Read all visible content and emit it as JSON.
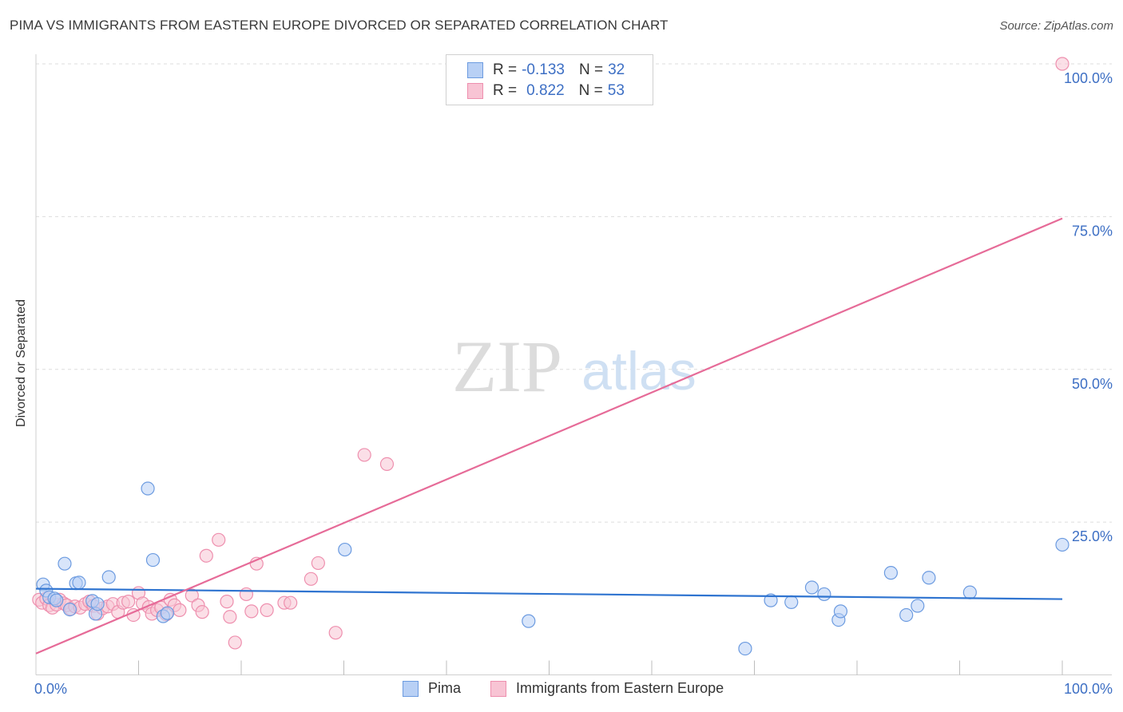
{
  "title": "PIMA VS IMMIGRANTS FROM EASTERN EUROPE DIVORCED OR SEPARATED CORRELATION CHART",
  "source": "Source: ZipAtlas.com",
  "watermark": {
    "zip": "ZIP",
    "atlas": "atlas"
  },
  "legend": {
    "rows": [
      {
        "r_label": "R =",
        "r_value": "-0.133",
        "n_label": "N =",
        "n_value": "32"
      },
      {
        "r_label": "R =",
        "r_value": "0.822",
        "n_label": "N =",
        "n_value": "53"
      }
    ]
  },
  "colors": {
    "pima_fill": "#b8d0f5",
    "pima_stroke": "#6c9be0",
    "pima_line": "#2f74d0",
    "imm_fill": "#f8c4d4",
    "imm_stroke": "#ee8fae",
    "imm_line": "#e66b98",
    "tick_text": "#3d6fc4",
    "grid": "#dddddd"
  },
  "chart_data": {
    "type": "scatter",
    "title": "PIMA VS IMMIGRANTS FROM EASTERN EUROPE DIVORCED OR SEPARATED CORRELATION CHART",
    "xlabel": "",
    "ylabel": "Divorced or Separated",
    "xlim": [
      0,
      100
    ],
    "ylim": [
      0,
      100
    ],
    "x_tick_labels": [
      "0.0%",
      "100.0%"
    ],
    "y_ticks": [
      {
        "value": 25,
        "label": "25.0%"
      },
      {
        "value": 50,
        "label": "50.0%"
      },
      {
        "value": 75,
        "label": "75.0%"
      },
      {
        "value": 100,
        "label": "100.0%"
      }
    ],
    "grid": true,
    "legend_position": "top-center",
    "series": [
      {
        "name": "Pima",
        "r": -0.133,
        "n": 32,
        "trend": {
          "x": [
            0,
            100
          ],
          "y": [
            14.1,
            12.4
          ]
        },
        "points": [
          [
            0.7,
            14.8
          ],
          [
            1.0,
            13.8
          ],
          [
            1.3,
            12.7
          ],
          [
            1.8,
            12.5
          ],
          [
            2.8,
            18.2
          ],
          [
            3.9,
            15.0
          ],
          [
            4.2,
            15.1
          ],
          [
            3.3,
            10.7
          ],
          [
            5.5,
            12.1
          ],
          [
            5.8,
            10.0
          ],
          [
            7.1,
            16.0
          ],
          [
            10.9,
            30.5
          ],
          [
            11.4,
            18.8
          ],
          [
            12.4,
            9.6
          ],
          [
            12.8,
            10.1
          ],
          [
            30.1,
            20.5
          ],
          [
            48.0,
            8.8
          ],
          [
            69.1,
            4.3
          ],
          [
            71.6,
            12.2
          ],
          [
            73.6,
            11.9
          ],
          [
            75.6,
            14.3
          ],
          [
            76.8,
            13.2
          ],
          [
            78.2,
            9.0
          ],
          [
            78.4,
            10.4
          ],
          [
            83.3,
            16.7
          ],
          [
            84.8,
            9.8
          ],
          [
            85.9,
            11.3
          ],
          [
            87.0,
            15.9
          ],
          [
            91.0,
            13.5
          ],
          [
            100.0,
            21.3
          ],
          [
            2.0,
            12.2
          ],
          [
            6.0,
            11.6
          ]
        ]
      },
      {
        "name": "Immigrants from Eastern Europe",
        "r": 0.822,
        "n": 53,
        "trend": {
          "x": [
            0,
            100
          ],
          "y": [
            3.5,
            74.7
          ]
        },
        "points": [
          [
            0.3,
            12.3
          ],
          [
            0.6,
            11.8
          ],
          [
            1.0,
            12.5
          ],
          [
            1.3,
            11.4
          ],
          [
            1.6,
            11.0
          ],
          [
            2.0,
            11.5
          ],
          [
            2.3,
            12.3
          ],
          [
            2.7,
            11.7
          ],
          [
            3.0,
            11.4
          ],
          [
            3.4,
            10.8
          ],
          [
            3.8,
            11.2
          ],
          [
            4.3,
            11.0
          ],
          [
            4.8,
            11.6
          ],
          [
            5.2,
            12.0
          ],
          [
            5.6,
            11.3
          ],
          [
            6.0,
            10.0
          ],
          [
            6.5,
            10.9
          ],
          [
            7.0,
            11.2
          ],
          [
            7.5,
            11.6
          ],
          [
            8.0,
            10.3
          ],
          [
            8.5,
            11.8
          ],
          [
            9.0,
            12.0
          ],
          [
            9.5,
            9.8
          ],
          [
            10.0,
            13.4
          ],
          [
            10.4,
            11.7
          ],
          [
            11.0,
            11.1
          ],
          [
            11.3,
            10.0
          ],
          [
            11.8,
            10.6
          ],
          [
            12.2,
            11.0
          ],
          [
            12.7,
            9.9
          ],
          [
            13.1,
            12.3
          ],
          [
            13.5,
            11.4
          ],
          [
            14.0,
            10.6
          ],
          [
            15.2,
            13.0
          ],
          [
            15.8,
            11.4
          ],
          [
            16.2,
            10.3
          ],
          [
            16.6,
            19.5
          ],
          [
            17.8,
            22.1
          ],
          [
            18.6,
            12.0
          ],
          [
            18.9,
            9.5
          ],
          [
            19.4,
            5.3
          ],
          [
            20.5,
            13.2
          ],
          [
            21.0,
            10.4
          ],
          [
            21.5,
            18.2
          ],
          [
            22.5,
            10.6
          ],
          [
            24.2,
            11.8
          ],
          [
            24.8,
            11.8
          ],
          [
            26.8,
            15.7
          ],
          [
            27.5,
            18.3
          ],
          [
            29.2,
            6.9
          ],
          [
            32.0,
            36.0
          ],
          [
            34.2,
            34.5
          ],
          [
            100.0,
            100.0
          ]
        ]
      }
    ]
  },
  "bottom_legend": {
    "items": [
      {
        "label": "Pima"
      },
      {
        "label": "Immigrants from Eastern Europe"
      }
    ]
  }
}
